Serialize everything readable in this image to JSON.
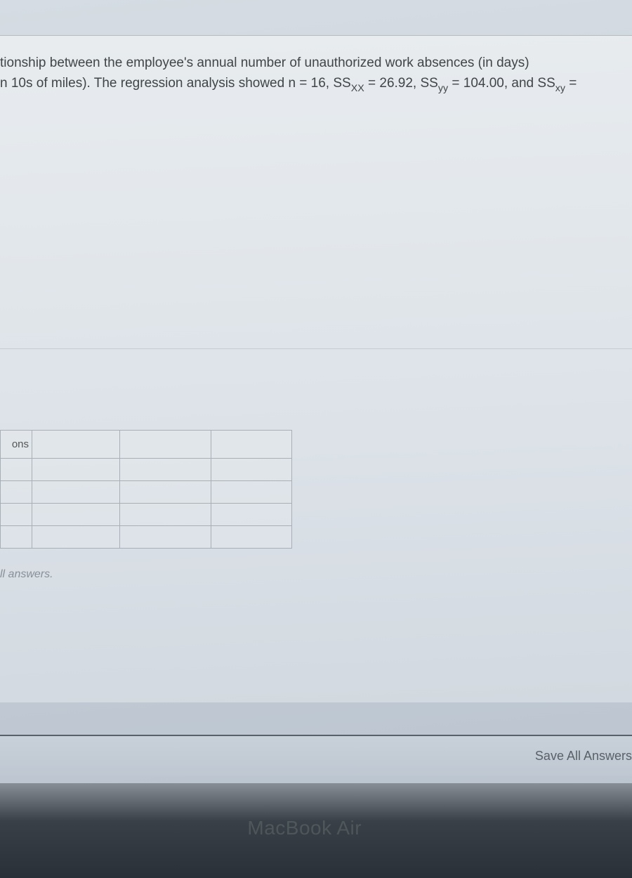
{
  "question": {
    "line1_prefix": "tionship between the employee's annual number of unauthorized work absences (in days)",
    "line2_prefix": "n 10s of miles). The regression analysis showed n = 16, SS",
    "ssxx_sub": "XX",
    "ssxx_val": " = 26.92, SS",
    "ssyy_sub": "yy",
    "ssyy_val": " = 104.00, and SS",
    "ssxy_sub": "xy",
    "ssxy_end": " ="
  },
  "table": {
    "header_label": "ons"
  },
  "footer": {
    "hint_text": "ll answers.",
    "save_button": "Save All Answers"
  },
  "device": {
    "label": "MacBook Air"
  },
  "colors": {
    "background_top": "#d5dce3",
    "background_bottom": "#b8c2cd",
    "panel_bg": "#e8ecef",
    "border": "#a8afb6",
    "text": "#404548",
    "hint_text": "#8a9098",
    "footer_border": "#58606a",
    "bezel": "#1a1a1a"
  }
}
